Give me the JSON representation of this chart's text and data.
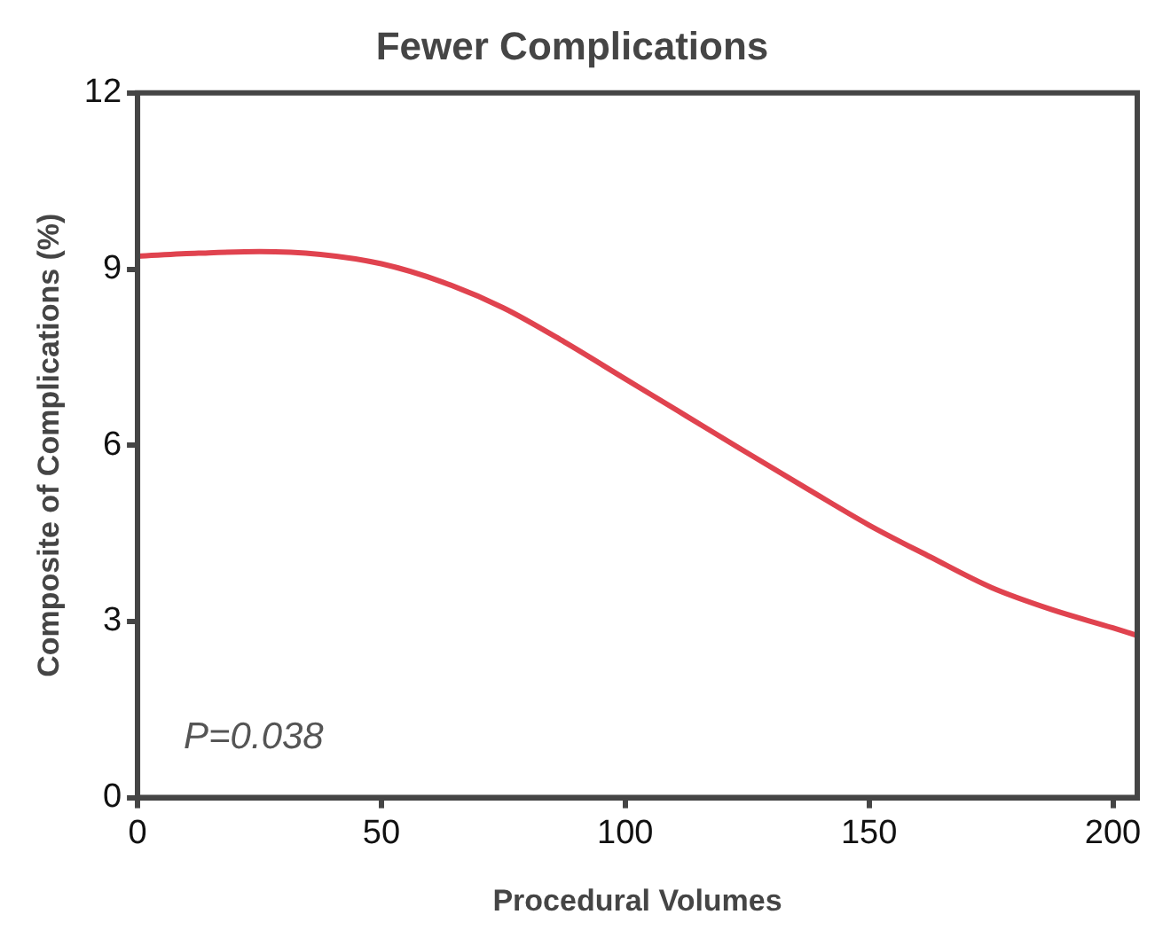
{
  "chart_data": {
    "type": "line",
    "title": "Fewer Complications",
    "xlabel": "Procedural Volumes",
    "ylabel": "Composite of Complications (%)",
    "x": [
      0,
      12.5,
      25,
      37.5,
      50,
      62.5,
      75,
      87.5,
      100,
      112.5,
      125,
      137.5,
      150,
      162.5,
      175,
      187.5,
      200,
      205
    ],
    "series": [
      {
        "color": "#e0434f",
        "values": [
          9.22,
          9.27,
          9.3,
          9.25,
          9.09,
          8.78,
          8.34,
          7.76,
          7.13,
          6.5,
          5.87,
          5.25,
          4.64,
          4.1,
          3.58,
          3.2,
          2.89,
          2.76
        ]
      }
    ],
    "xlim": [
      0,
      205
    ],
    "xticks": [
      0,
      50,
      100,
      150,
      200
    ],
    "ylim": [
      0,
      12
    ],
    "yticks": [
      0,
      3,
      6,
      9,
      12
    ],
    "grid": false,
    "legend": false,
    "marker": "none",
    "line_style": "solid",
    "annotations": [
      "P=0.038"
    ]
  }
}
